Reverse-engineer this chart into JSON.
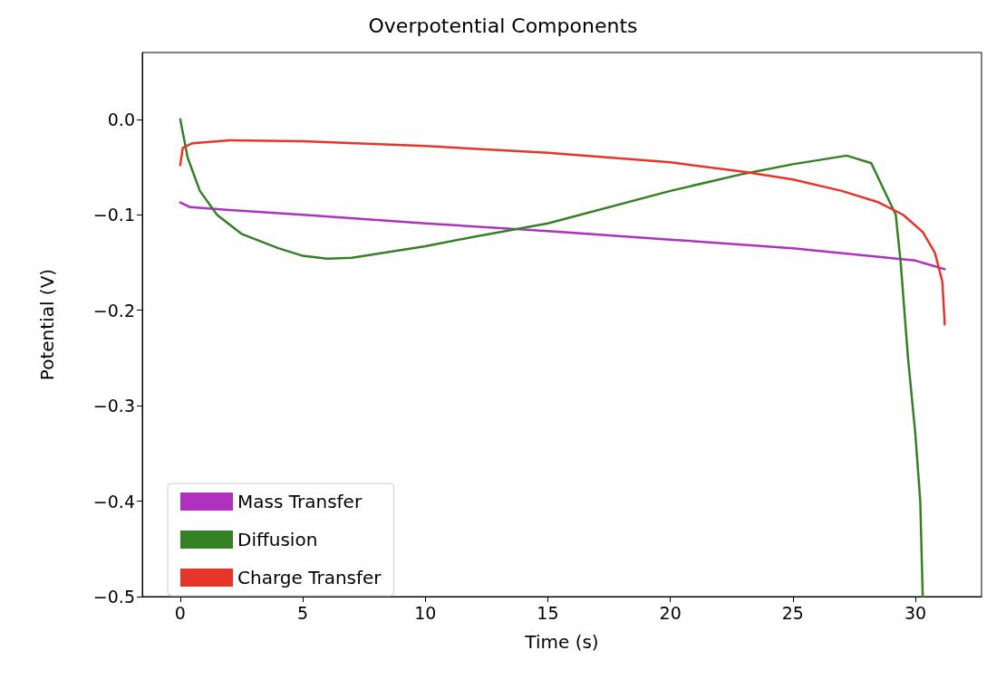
{
  "chart_data": {
    "type": "line",
    "title": "Overpotential Components",
    "xlabel": "Time (s)",
    "ylabel": "Potential (V)",
    "xlim": [
      -1.55,
      32.7
    ],
    "xticks": [
      0,
      5,
      10,
      15,
      20,
      25,
      30
    ],
    "ylim": [
      -0.5,
      0.07
    ],
    "yticks": [
      {
        "value": -0.5,
        "label": "−0.5"
      },
      {
        "value": -0.4,
        "label": "−0.4"
      },
      {
        "value": -0.3,
        "label": "−0.3"
      },
      {
        "value": -0.2,
        "label": "−0.2"
      },
      {
        "value": -0.1,
        "label": "−0.1"
      },
      {
        "value": 0,
        "label": "0.0"
      }
    ],
    "grid": false,
    "legend": "bottom left",
    "marker": "none",
    "line_style": "solid",
    "series": [
      {
        "name": "Mass Transfer",
        "color": "#b030c0",
        "x": [
          0,
          0.4,
          2,
          5,
          10,
          15,
          20,
          25,
          30,
          31.2
        ],
        "values": [
          -0.087,
          -0.092,
          -0.095,
          -0.1,
          -0.109,
          -0.117,
          -0.126,
          -0.135,
          -0.148,
          -0.157
        ]
      },
      {
        "name": "Diffusion",
        "color": "#358025",
        "x": [
          0,
          0.3,
          0.8,
          1.5,
          2.5,
          4,
          5,
          6,
          7,
          8,
          10,
          12,
          15,
          20,
          23,
          25,
          27.2,
          28.2,
          29.2,
          29.4,
          29.7,
          30,
          30.2,
          30.3
        ],
        "values": [
          0,
          -0.04,
          -0.075,
          -0.1,
          -0.12,
          -0.135,
          -0.143,
          -0.146,
          -0.145,
          -0.141,
          -0.133,
          -0.123,
          -0.109,
          -0.075,
          -0.057,
          -0.047,
          -0.038,
          -0.046,
          -0.1,
          -0.15,
          -0.25,
          -0.33,
          -0.4,
          -0.5
        ]
      },
      {
        "name": "Charge Transfer",
        "color": "#e8352a",
        "x": [
          0,
          0.1,
          0.5,
          2,
          5,
          10,
          15,
          20,
          23,
          25,
          27,
          28.5,
          29.5,
          30.3,
          30.8,
          31.1,
          31.2
        ],
        "values": [
          -0.048,
          -0.03,
          -0.025,
          -0.022,
          -0.023,
          -0.028,
          -0.035,
          -0.045,
          -0.055,
          -0.063,
          -0.075,
          -0.087,
          -0.1,
          -0.118,
          -0.14,
          -0.17,
          -0.215
        ]
      }
    ]
  }
}
